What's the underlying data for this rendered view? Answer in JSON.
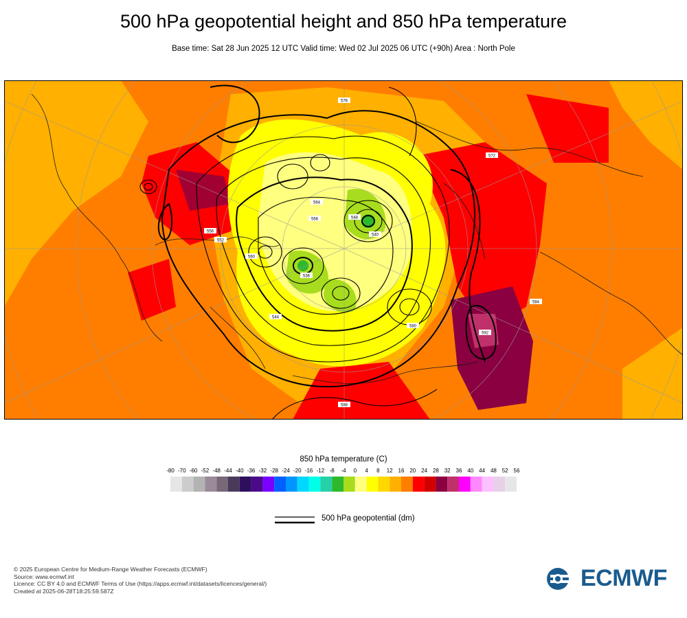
{
  "title": "500 hPa geopotential height and 850 hPa temperature",
  "subtitle": "Base time: Sat 28 Jun 2025 12 UTC Valid time: Wed 02 Jul 2025 06 UTC (+90h) Area : North Pole",
  "legend": {
    "title": "850 hPa temperature (C)",
    "ticks": [
      "-80",
      "-70",
      "-60",
      "-52",
      "-48",
      "-44",
      "-40",
      "-36",
      "-32",
      "-28",
      "-24",
      "-20",
      "-16",
      "-12",
      "-8",
      "-4",
      "0",
      "4",
      "8",
      "12",
      "16",
      "20",
      "24",
      "28",
      "32",
      "36",
      "40",
      "44",
      "48",
      "52",
      "56"
    ],
    "colors": [
      "#e6e6e6",
      "#cccccc",
      "#b3b3b3",
      "#9a8a9a",
      "#786878",
      "#4a3a5a",
      "#2e0f5e",
      "#4b0a8a",
      "#7a00ff",
      "#0060ff",
      "#0096ff",
      "#00d8ff",
      "#00ffe8",
      "#26d0a8",
      "#2db82d",
      "#a8dc1e",
      "#ffff80",
      "#ffff00",
      "#ffd800",
      "#ffb000",
      "#ff7e00",
      "#ff0000",
      "#d00000",
      "#8a0040",
      "#c0306a",
      "#ff00ff",
      "#ff88ff",
      "#ffc0ff",
      "#e8d0e8",
      "#e6e6e6"
    ],
    "geopotential_label": "500 hPa geopotential (dm)"
  },
  "map": {
    "contour_labels": [
      "552",
      "564",
      "576",
      "584",
      "588",
      "580",
      "568",
      "560",
      "548",
      "540",
      "536",
      "544",
      "556",
      "572",
      "592"
    ]
  },
  "credits": [
    "© 2025 European Centre for Medium-Range Weather Forecasts (ECMWF)",
    "Source: www.ecmwf.int",
    "Licence: CC BY 4.0 and ECMWF Terms of Use (https://apps.ecmwf.int/datasets/licences/general/)",
    "Created at 2025-06-28T18:25:59.587Z"
  ],
  "logo": {
    "text": "ECMWF",
    "color": "#1a5b8e"
  }
}
